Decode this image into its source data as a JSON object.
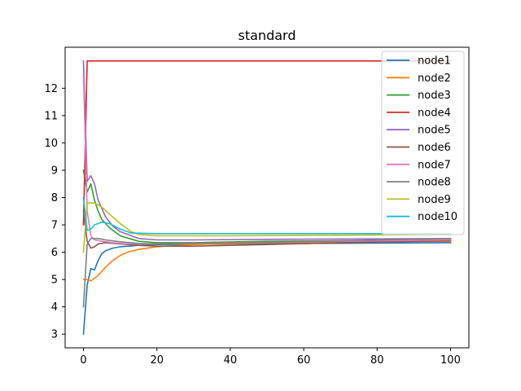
{
  "chart_data": {
    "type": "line",
    "title": "standard",
    "xlabel": "",
    "ylabel": "",
    "xlim": [
      -5,
      105
    ],
    "ylim": [
      2.5,
      13.5
    ],
    "xticks": [
      0,
      20,
      40,
      60,
      80,
      100
    ],
    "yticks": [
      3,
      4,
      5,
      6,
      7,
      8,
      9,
      10,
      11,
      12
    ],
    "grid": false,
    "legend_position": "top-right",
    "series": [
      {
        "name": "node1",
        "color": "#1f77b4",
        "points": [
          [
            0,
            3.0
          ],
          [
            1,
            4.8
          ],
          [
            2,
            5.4
          ],
          [
            3,
            5.35
          ],
          [
            4,
            5.7
          ],
          [
            5,
            5.95
          ],
          [
            6,
            6.05
          ],
          [
            8,
            6.15
          ],
          [
            10,
            6.2
          ],
          [
            15,
            6.25
          ],
          [
            20,
            6.28
          ],
          [
            40,
            6.3
          ],
          [
            60,
            6.32
          ],
          [
            80,
            6.33
          ],
          [
            100,
            6.35
          ]
        ]
      },
      {
        "name": "node2",
        "color": "#ff7f0e",
        "points": [
          [
            0,
            5.0
          ],
          [
            1,
            5.0
          ],
          [
            2,
            4.95
          ],
          [
            3,
            5.05
          ],
          [
            4,
            5.15
          ],
          [
            6,
            5.45
          ],
          [
            8,
            5.7
          ],
          [
            10,
            5.88
          ],
          [
            12,
            6.0
          ],
          [
            15,
            6.1
          ],
          [
            20,
            6.2
          ],
          [
            30,
            6.28
          ],
          [
            50,
            6.35
          ],
          [
            70,
            6.38
          ],
          [
            100,
            6.4
          ]
        ]
      },
      {
        "name": "node3",
        "color": "#2ca02c",
        "points": [
          [
            0,
            9.0
          ],
          [
            1,
            8.2
          ],
          [
            2,
            8.5
          ],
          [
            3,
            7.9
          ],
          [
            4,
            7.5
          ],
          [
            5,
            7.2
          ],
          [
            7,
            6.9
          ],
          [
            10,
            6.6
          ],
          [
            15,
            6.4
          ],
          [
            20,
            6.35
          ],
          [
            30,
            6.35
          ],
          [
            50,
            6.4
          ],
          [
            70,
            6.42
          ],
          [
            100,
            6.45
          ]
        ]
      },
      {
        "name": "node4",
        "color": "#d62728",
        "points": [
          [
            0,
            7.0
          ],
          [
            1,
            13.0
          ],
          [
            100,
            13.0
          ]
        ]
      },
      {
        "name": "node5",
        "color": "#9467bd",
        "points": [
          [
            0,
            13.0
          ],
          [
            1,
            8.6
          ],
          [
            2,
            8.8
          ],
          [
            3,
            8.5
          ],
          [
            4,
            7.9
          ],
          [
            6,
            7.3
          ],
          [
            8,
            6.95
          ],
          [
            10,
            6.75
          ],
          [
            15,
            6.5
          ],
          [
            20,
            6.45
          ],
          [
            30,
            6.45
          ],
          [
            50,
            6.47
          ],
          [
            100,
            6.5
          ]
        ]
      },
      {
        "name": "node6",
        "color": "#8c564b",
        "points": [
          [
            0,
            7.5
          ],
          [
            1,
            6.4
          ],
          [
            2,
            6.15
          ],
          [
            3,
            6.2
          ],
          [
            4,
            6.3
          ],
          [
            6,
            6.35
          ],
          [
            10,
            6.3
          ],
          [
            15,
            6.25
          ],
          [
            20,
            6.22
          ],
          [
            30,
            6.22
          ],
          [
            50,
            6.28
          ],
          [
            70,
            6.35
          ],
          [
            100,
            6.42
          ]
        ]
      },
      {
        "name": "node7",
        "color": "#e377c2",
        "points": [
          [
            0,
            12.5
          ],
          [
            1,
            7.5
          ],
          [
            2,
            6.6
          ],
          [
            3,
            6.45
          ],
          [
            5,
            6.4
          ],
          [
            8,
            6.35
          ],
          [
            12,
            6.3
          ],
          [
            20,
            6.3
          ],
          [
            40,
            6.35
          ],
          [
            70,
            6.4
          ],
          [
            100,
            6.45
          ]
        ]
      },
      {
        "name": "node8",
        "color": "#7f7f7f",
        "points": [
          [
            0,
            4.0
          ],
          [
            1,
            6.3
          ],
          [
            2,
            6.5
          ],
          [
            3,
            6.5
          ],
          [
            4,
            6.5
          ],
          [
            6,
            6.45
          ],
          [
            10,
            6.38
          ],
          [
            15,
            6.32
          ],
          [
            20,
            6.3
          ],
          [
            40,
            6.35
          ],
          [
            70,
            6.42
          ],
          [
            100,
            6.5
          ]
        ]
      },
      {
        "name": "node9",
        "color": "#bcbd22",
        "points": [
          [
            0,
            6.0
          ],
          [
            1,
            7.8
          ],
          [
            2,
            7.8
          ],
          [
            3,
            7.8
          ],
          [
            5,
            7.65
          ],
          [
            7,
            7.4
          ],
          [
            10,
            7.05
          ],
          [
            13,
            6.75
          ],
          [
            15,
            6.65
          ],
          [
            20,
            6.6
          ],
          [
            40,
            6.6
          ],
          [
            70,
            6.62
          ],
          [
            100,
            6.65
          ]
        ]
      },
      {
        "name": "node10",
        "color": "#17becf",
        "points": [
          [
            0,
            8.0
          ],
          [
            1,
            6.8
          ],
          [
            2,
            6.85
          ],
          [
            3,
            7.0
          ],
          [
            5,
            7.1
          ],
          [
            7,
            7.05
          ],
          [
            10,
            6.85
          ],
          [
            13,
            6.7
          ],
          [
            20,
            6.68
          ],
          [
            50,
            6.68
          ],
          [
            100,
            6.68
          ]
        ]
      }
    ]
  }
}
